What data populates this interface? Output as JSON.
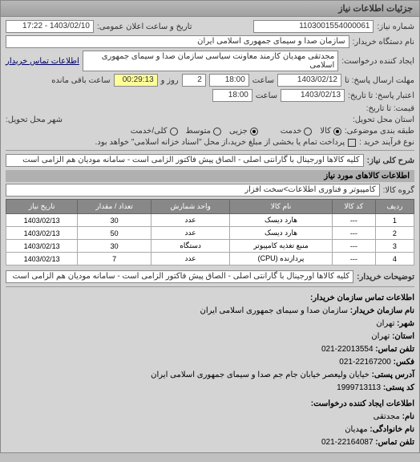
{
  "titlebar": "جزئیات اطلاعات نیاز",
  "header": {
    "number_label": "شماره نیاز:",
    "number_value": "1103001554000061",
    "datetime_label": "تاریخ و ساعت اعلان عمومی:",
    "datetime_value": "1403/02/10 - 17:22"
  },
  "buyer": {
    "device_label": "نام دستگاه خریدار:",
    "device_value": "سازمان صدا و سیمای جمهوری اسلامی ایران"
  },
  "requester": {
    "label": "ایجاد کننده درخواست:",
    "value": "مجدتقی مهدیان کارمند معاونت سیاسی سازمان صدا و سیمای جمهوری اسلامی",
    "contact_link": "اطلاعات تماس خریدار"
  },
  "deadline": {
    "send_label": "مهلت ارسال پاسخ: تا",
    "send_date": "1403/02/12",
    "time_label": "ساعت",
    "send_time": "18:00",
    "days_label": "روز و",
    "days_value": "2",
    "remain_label": "ساعت باقی مانده",
    "remain_value": "00:29:13"
  },
  "validity": {
    "label": "اعتبار پاسخ: تا تاریخ:",
    "date": "1403/02/13",
    "time_label": "ساعت",
    "time": "18:00",
    "price_label": "قیمت: تا تاریخ:"
  },
  "delivery": {
    "place_label": "استان محل تحویل:",
    "city_label": "شهر محل تحویل:"
  },
  "classification": {
    "label": "طبقه بندی موضوعی:",
    "options": [
      {
        "label": "کالا",
        "checked": true
      },
      {
        "label": "خدمت",
        "checked": false
      }
    ],
    "type_options": [
      {
        "label": "جزیی",
        "checked": true
      },
      {
        "label": "متوسط",
        "checked": false
      },
      {
        "label": "کلی/خدمت",
        "checked": false
      }
    ]
  },
  "process": {
    "label": "نوع فرآیند خرید :",
    "checkbox1_label": "پرداخت تمام یا بخشی از مبلغ خرید،از محل \"اسناد خزانه اسلامی\" خواهد بود."
  },
  "description": {
    "label": "شرح کلی نیاز:",
    "value": "کلیه کالاها اورجینال با گارانتی اصلی - الصاق پیش فاکتور الزامی است - سامانه مودیان هم الزامی است"
  },
  "goods_section": "اطلاعات کالاهای مورد نیاز",
  "group": {
    "label": "گروه کالا:",
    "value": "کامپیوتر و فناوری اطلاعات>سخت افزار"
  },
  "table": {
    "headers": [
      "ردیف",
      "کد کالا",
      "نام کالا",
      "واحد شمارش",
      "تعداد / مقدار",
      "تاریخ نیاز"
    ],
    "rows": [
      [
        "1",
        "---",
        "هارد دیسک",
        "عدد",
        "30",
        "1403/02/13"
      ],
      [
        "2",
        "---",
        "هارد دیسک",
        "عدد",
        "50",
        "1403/02/13"
      ],
      [
        "3",
        "---",
        "منبع تغذیه کامپیوتر",
        "دستگاه",
        "30",
        "1403/02/13"
      ],
      [
        "4",
        "---",
        "پردازنده (CPU)",
        "عدد",
        "7",
        "1403/02/13"
      ]
    ]
  },
  "buyer_notes": {
    "label": "توضیحات خریدار:",
    "value": "کلیه کالاها اورجینال با گارانتی اصلی - الصاق پیش فاکتور الزامی است - سامانه مودیان هم الزامی است"
  },
  "contact": {
    "header": "اطلاعات تماس سازمان خریدار:",
    "org_label": "نام سازمان خریدار:",
    "org_value": "سازمان صدا و سیمای جمهوری اسلامی ایران",
    "city_label": "شهر:",
    "city_value": "تهران",
    "province_label": "استان:",
    "province_value": "تهران",
    "phone_label": "تلفن تماس:",
    "phone_value": "22013554-021",
    "fax_label": "فکس:",
    "fax_value": "22167200-021",
    "address_label": "آدرس پستی:",
    "address_value": "خیایان ولیعصر خیابان جام جم صدا و سیمای جمهوری اسلامی ایران",
    "postal_label": "کد پستی:",
    "postal_value": "1999713113"
  },
  "creator": {
    "header": "اطلاعات ایجاد کننده درخواست:",
    "name_label": "نام:",
    "name_value": "مجدتقی",
    "family_label": "نام خانوادگی:",
    "family_value": "مهدیان",
    "phone_label": "تلفن تماس:",
    "phone_value": "22164087-021"
  }
}
